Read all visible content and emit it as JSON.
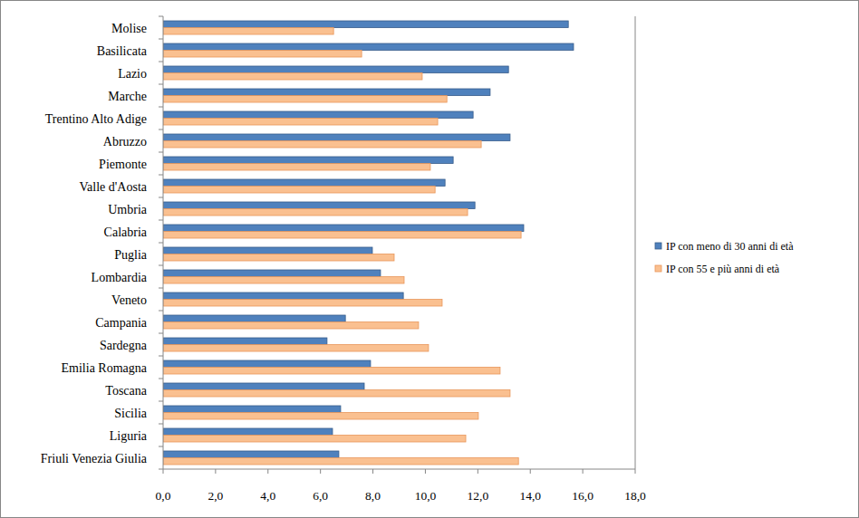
{
  "chart_data": {
    "type": "bar",
    "orientation": "horizontal",
    "grid": false,
    "legend": "right",
    "categories": [
      "Molise",
      "Basilicata",
      "Lazio",
      "Marche",
      "Trentino Alto Adige",
      "Abruzzo",
      "Piemonte",
      "Valle d'Aosta",
      "Umbria",
      "Calabria",
      "Puglia",
      "Lombardia",
      "Veneto",
      "Campania",
      "Sardegna",
      "Emilia Romagna",
      "Toscana",
      "Sicilia",
      "Liguria",
      "Friuli Venezia Giulia"
    ],
    "series": [
      {
        "name": "IP con meno di 30 anni di età",
        "color": "#4f81bd",
        "values": [
          15.45,
          15.65,
          13.17,
          12.47,
          11.82,
          13.23,
          11.06,
          10.75,
          11.89,
          13.75,
          7.98,
          8.29,
          9.16,
          6.95,
          6.25,
          7.91,
          7.67,
          6.77,
          6.46,
          6.7
        ]
      },
      {
        "name": "IP con 55 e più anni di età",
        "color": "#fac090",
        "values": [
          6.5,
          7.57,
          9.88,
          10.82,
          10.47,
          12.13,
          10.19,
          10.37,
          11.61,
          13.65,
          8.81,
          9.19,
          10.64,
          9.74,
          10.12,
          12.85,
          13.23,
          12.02,
          11.54,
          13.55
        ]
      }
    ],
    "xlim": [
      0,
      18
    ],
    "xticks": [
      {
        "value": 0,
        "label": "0,0"
      },
      {
        "value": 2,
        "label": "2,0"
      },
      {
        "value": 4,
        "label": "4,0"
      },
      {
        "value": 6,
        "label": "6,0"
      },
      {
        "value": 8,
        "label": "8,0"
      },
      {
        "value": 10,
        "label": "10,0"
      },
      {
        "value": 12,
        "label": "12,0"
      },
      {
        "value": 14,
        "label": "14,0"
      },
      {
        "value": 16,
        "label": "16,0"
      },
      {
        "value": 18,
        "label": "18,0"
      }
    ]
  }
}
